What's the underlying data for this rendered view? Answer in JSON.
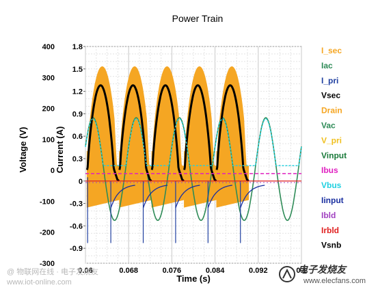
{
  "chart_data": {
    "type": "line",
    "title": "Power Train",
    "xlabel": "Time (s)",
    "ylabel_left": "Voltage (V)",
    "ylabel_right": "Current (A)",
    "xlim": [
      0.06,
      0.1
    ],
    "x_ticks": [
      "0.06",
      "0.068",
      "0.076",
      "0.084",
      "0.092",
      "0.1"
    ],
    "voltage_ylim": [
      -300,
      400
    ],
    "voltage_ticks": [
      "400",
      "300",
      "200",
      "100",
      "0",
      "-100",
      "-200",
      "-300"
    ],
    "current_ylim": [
      -1.1,
      1.8
    ],
    "current_ticks": [
      "1.8",
      "1.5",
      "1.2",
      "0.9",
      "0.6",
      "0.3",
      "0",
      "-0.3",
      "-0.6",
      "-0.9"
    ],
    "grid": true,
    "legend_position": "right",
    "series": [
      {
        "name": "I_sec",
        "color": "#f5a623"
      },
      {
        "name": "Iac",
        "color": "#2e8b57"
      },
      {
        "name": "I_pri",
        "color": "#1f3fa0"
      },
      {
        "name": "Vsec",
        "color": "#000000"
      },
      {
        "name": "Drain",
        "color": "#f5a623"
      },
      {
        "name": "Vac",
        "color": "#2e8b57"
      },
      {
        "name": "V_pri",
        "color": "#f0c020"
      },
      {
        "name": "Vinput",
        "color": "#1a7a3a"
      },
      {
        "name": "Ibus",
        "color": "#e020c0"
      },
      {
        "name": "Vbus",
        "color": "#20d0e0"
      },
      {
        "name": "Iinput",
        "color": "#1a2fa0"
      },
      {
        "name": "Ibld",
        "color": "#a040c0"
      },
      {
        "name": "Irbld",
        "color": "#e02020"
      },
      {
        "name": "Vsnb",
        "color": "#000000"
      }
    ],
    "period_s": 0.008,
    "pulse_ranges_s": [
      [
        0.0603,
        0.0662
      ],
      [
        0.0663,
        0.0722
      ],
      [
        0.0723,
        0.0782
      ],
      [
        0.0783,
        0.0842
      ],
      [
        0.0843,
        0.0902
      ]
    ],
    "drain_envelope_A": {
      "peak": 1.53,
      "floor": -0.35
    },
    "vsec_peak_A": 1.28,
    "vac_amplitude_V": 170,
    "vbus_level_V": 10,
    "ibus_level_A": 0.1,
    "irbld_level_A": 0.0
  },
  "watermark": {
    "left_line1": "@ 物联网在线 · 电子发烧友",
    "left_line2": "www.iot-online.com",
    "right_logo": "电子发烧友",
    "right_url": "www.elecfans.com"
  }
}
